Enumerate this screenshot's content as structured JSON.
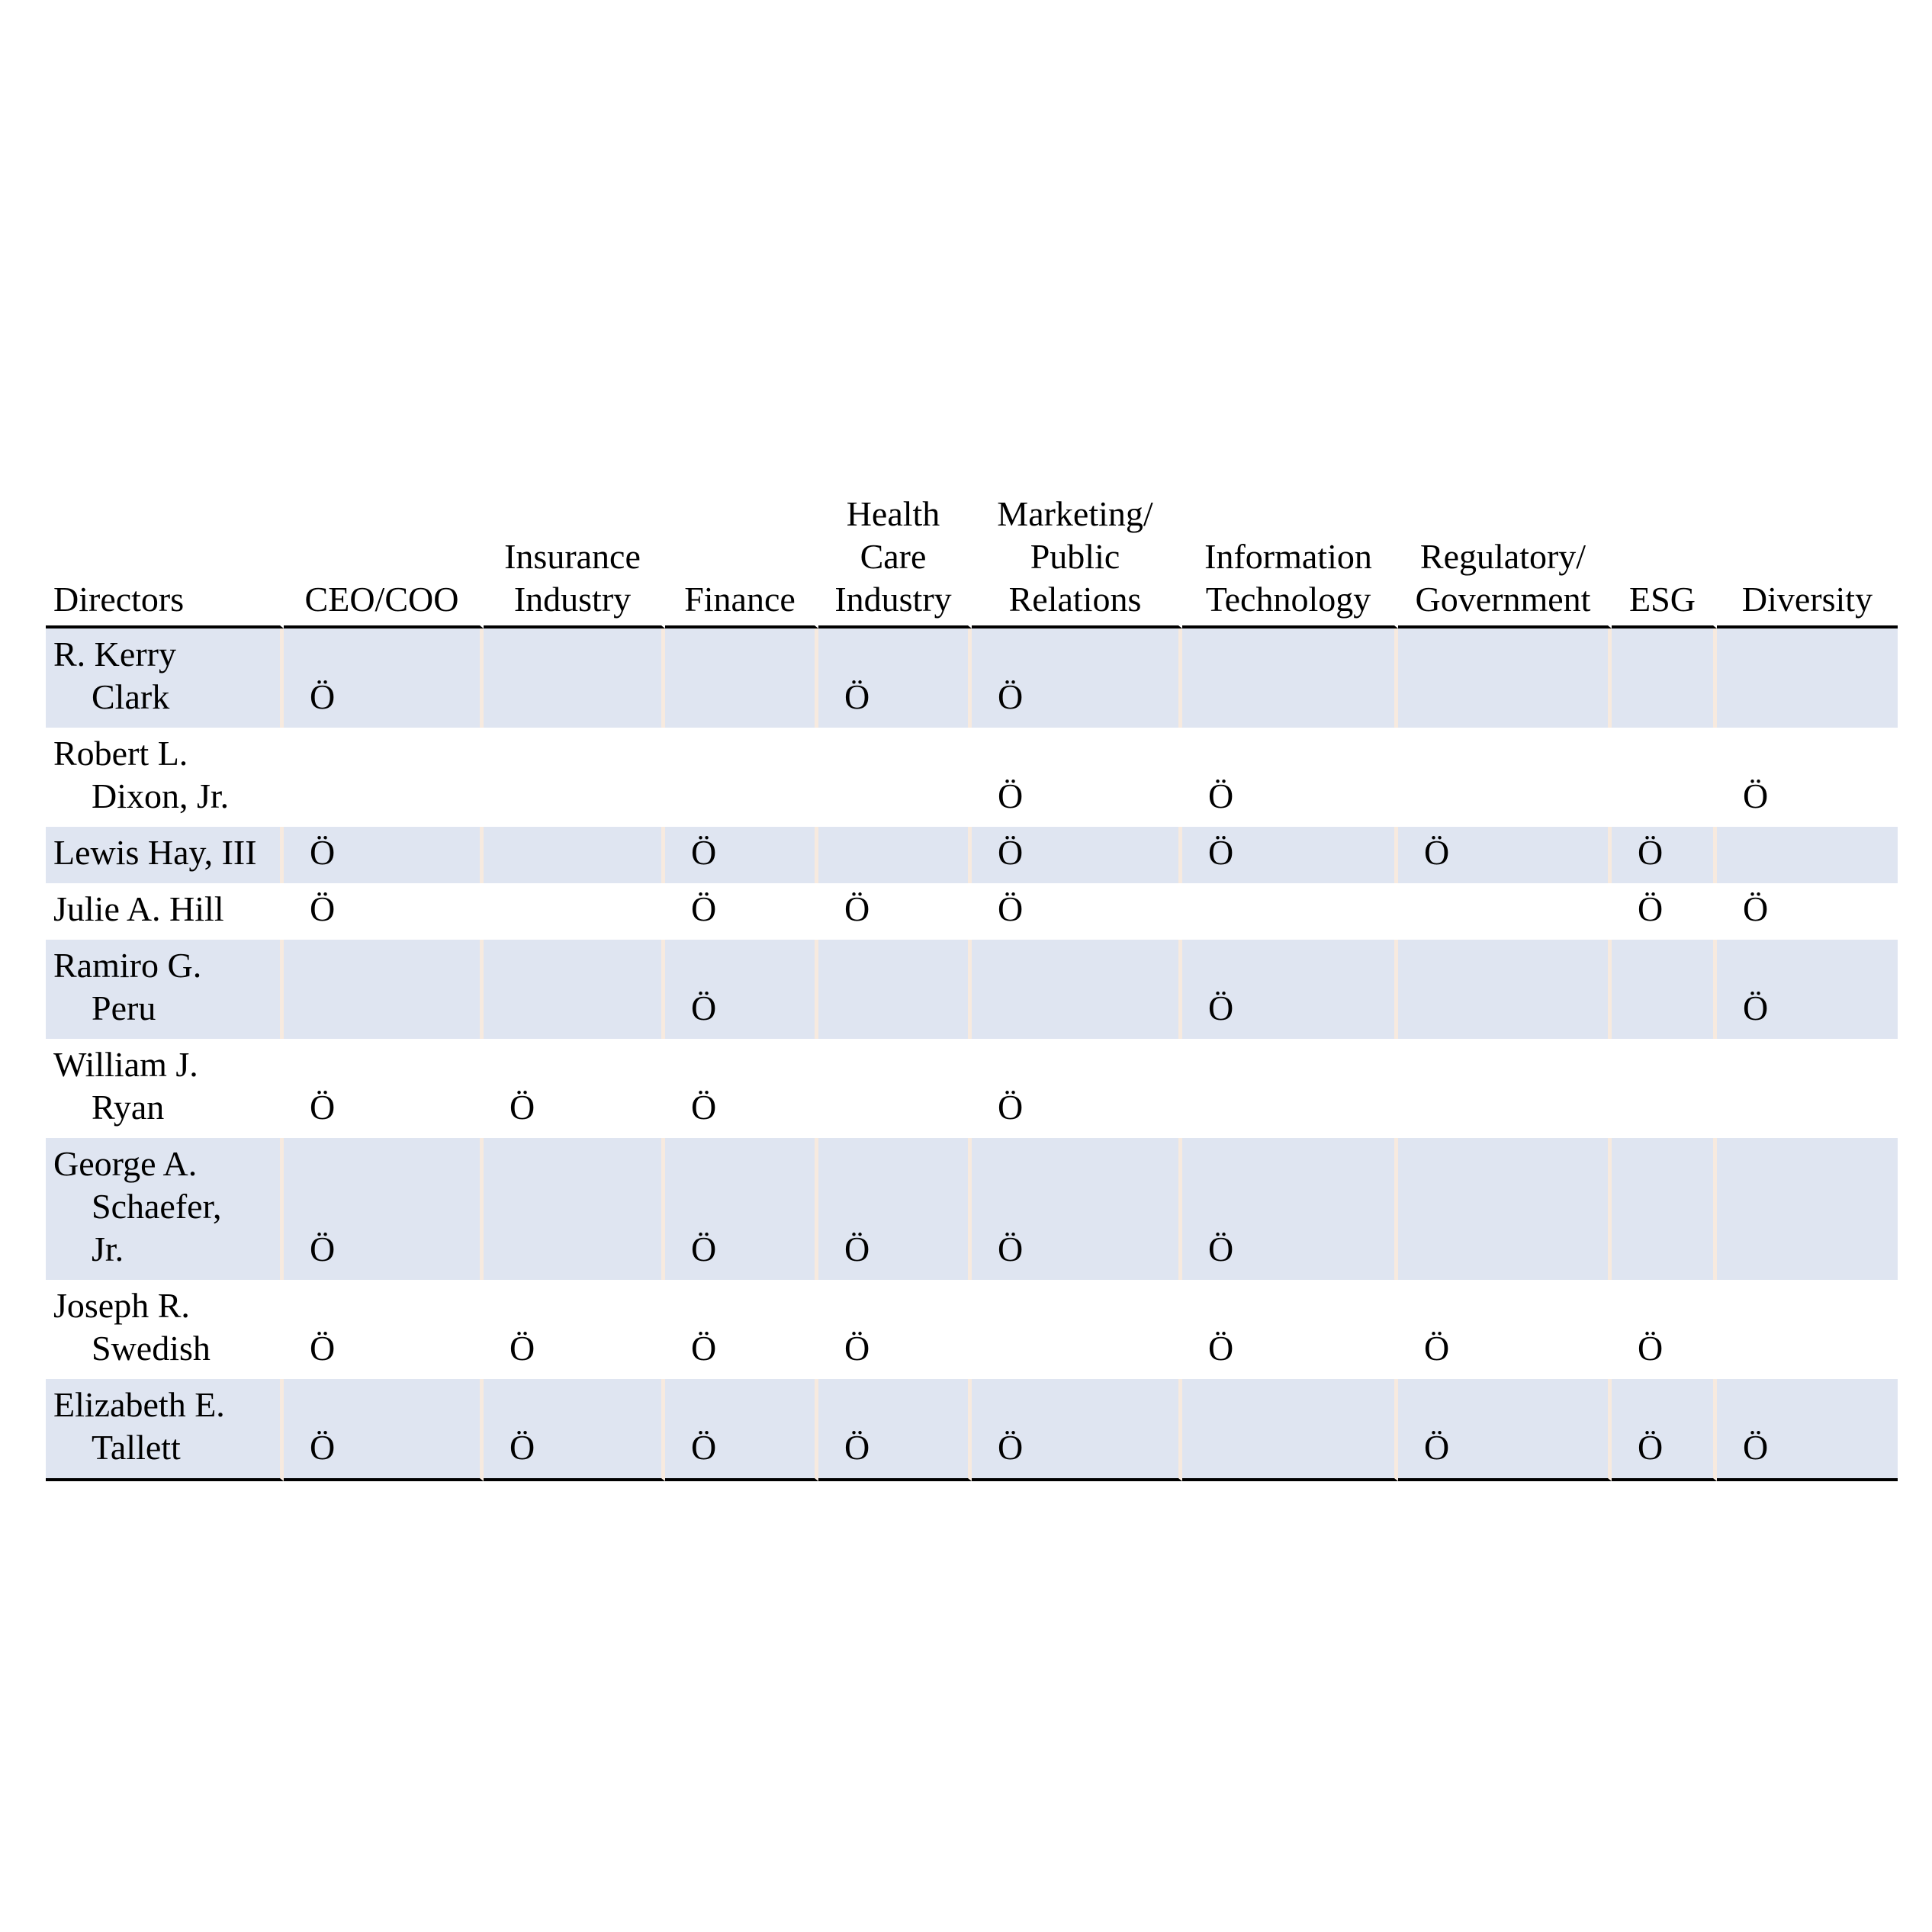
{
  "table": {
    "headers": [
      "Directors",
      "CEO/COO",
      "Insurance\nIndustry",
      "Finance",
      "Health\nCare\nIndustry",
      "Marketing/\nPublic\nRelations",
      "Information\nTechnology",
      "Regulatory/\nGovernment",
      "ESG",
      "Diversity"
    ],
    "check_symbol": "Ö",
    "rows": [
      {
        "name_lines": [
          "R. Kerry",
          "Clark"
        ],
        "checks": [
          true,
          false,
          false,
          true,
          true,
          false,
          false,
          false,
          false
        ]
      },
      {
        "name_lines": [
          "Robert L.",
          "Dixon, Jr."
        ],
        "checks": [
          false,
          false,
          false,
          false,
          true,
          true,
          false,
          false,
          true
        ]
      },
      {
        "name_lines": [
          "Lewis Hay, III"
        ],
        "checks": [
          true,
          false,
          true,
          false,
          true,
          true,
          true,
          true,
          false
        ]
      },
      {
        "name_lines": [
          "Julie A. Hill"
        ],
        "checks": [
          true,
          false,
          true,
          true,
          true,
          false,
          false,
          true,
          true
        ]
      },
      {
        "name_lines": [
          "Ramiro G.",
          "Peru"
        ],
        "checks": [
          false,
          false,
          true,
          false,
          false,
          true,
          false,
          false,
          true
        ]
      },
      {
        "name_lines": [
          "William J.",
          "Ryan"
        ],
        "checks": [
          true,
          true,
          true,
          false,
          true,
          false,
          false,
          false,
          false
        ]
      },
      {
        "name_lines": [
          "George A.",
          "Schaefer,",
          "Jr."
        ],
        "checks": [
          true,
          false,
          true,
          true,
          true,
          true,
          false,
          false,
          false
        ]
      },
      {
        "name_lines": [
          "Joseph R.",
          "Swedish"
        ],
        "checks": [
          true,
          true,
          true,
          true,
          false,
          true,
          true,
          true,
          false
        ]
      },
      {
        "name_lines": [
          "Elizabeth E.",
          "Tallett"
        ],
        "checks": [
          true,
          true,
          true,
          true,
          true,
          false,
          true,
          true,
          true
        ]
      }
    ]
  },
  "colors": {
    "row_shade": "#dfe5f1",
    "rule": "#000000",
    "shaded_divider": "#f7eadf"
  }
}
